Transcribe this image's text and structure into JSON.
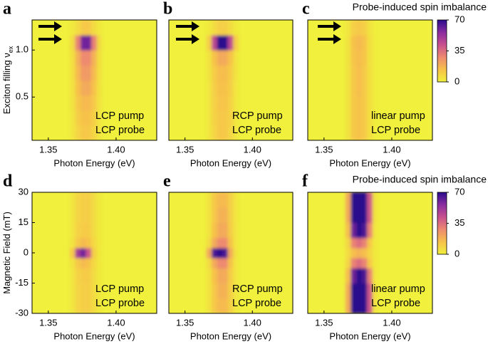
{
  "chart_data": [
    {
      "type": "heatmap",
      "panel": "a",
      "xlabel": "Photon Energy (eV)",
      "ylabel": "Exciton filling ν",
      "ylabel_sub": "ex",
      "annotation": [
        "LCP pump",
        "LCP probe"
      ],
      "xlim": [
        1.338,
        1.43
      ],
      "xticks": [
        {
          "value": 1.35,
          "label": "1.35"
        },
        {
          "value": 1.4,
          "label": "1.40"
        }
      ],
      "ylim": [
        0.04,
        1.32
      ],
      "yticks": [
        0.5,
        {
          "value": 1.0,
          "label": "1.0"
        }
      ],
      "colormap": [
        "#f0f03c",
        "#f7c24a",
        "#ee8a70",
        "#c8508e",
        "#8a2ca0",
        "#2a0c8c"
      ],
      "zlim": [
        0,
        70
      ],
      "x": [
        1.338,
        1.366,
        1.37,
        1.374,
        1.378,
        1.382,
        1.386,
        1.39,
        1.43
      ],
      "y": [
        0.04,
        0.2,
        0.36,
        0.52,
        0.68,
        0.84,
        1.0,
        1.16,
        1.32
      ],
      "z": [
        [
          0,
          3,
          8,
          12,
          12,
          8,
          3,
          0
        ],
        [
          0,
          3,
          10,
          14,
          14,
          10,
          3,
          0
        ],
        [
          0,
          4,
          12,
          16,
          16,
          12,
          4,
          0
        ],
        [
          0,
          4,
          14,
          20,
          20,
          14,
          4,
          0
        ],
        [
          0,
          5,
          16,
          24,
          24,
          16,
          5,
          0
        ],
        [
          0,
          5,
          18,
          28,
          28,
          18,
          5,
          0
        ],
        [
          0,
          6,
          30,
          60,
          60,
          30,
          6,
          0
        ],
        [
          0,
          2,
          6,
          12,
          12,
          6,
          2,
          0
        ]
      ]
    },
    {
      "type": "heatmap",
      "panel": "b",
      "xlabel": "Photon Energy (eV)",
      "annotation": [
        "RCP pump",
        "LCP probe"
      ],
      "xlim": [
        1.338,
        1.43
      ],
      "xticks": [
        {
          "value": 1.35,
          "label": "1.35"
        },
        {
          "value": 1.4,
          "label": "1.40"
        }
      ],
      "ylim": [
        0.04,
        1.32
      ],
      "colormap": [
        "#f0f03c",
        "#f7c24a",
        "#ee8a70",
        "#c8508e",
        "#8a2ca0",
        "#2a0c8c"
      ],
      "zlim": [
        0,
        70
      ],
      "x": [
        1.338,
        1.366,
        1.37,
        1.374,
        1.378,
        1.382,
        1.386,
        1.39,
        1.43
      ],
      "y": [
        0.04,
        0.2,
        0.36,
        0.52,
        0.68,
        0.84,
        1.0,
        1.16,
        1.32
      ],
      "z": [
        [
          0,
          3,
          8,
          12,
          12,
          8,
          3,
          0
        ],
        [
          0,
          3,
          9,
          12,
          12,
          9,
          3,
          0
        ],
        [
          0,
          3,
          9,
          13,
          13,
          9,
          3,
          0
        ],
        [
          0,
          3,
          10,
          14,
          14,
          10,
          3,
          0
        ],
        [
          0,
          4,
          11,
          15,
          15,
          11,
          4,
          0
        ],
        [
          0,
          4,
          14,
          20,
          20,
          14,
          4,
          0
        ],
        [
          0,
          10,
          45,
          70,
          70,
          45,
          10,
          0
        ],
        [
          0,
          2,
          6,
          10,
          10,
          6,
          2,
          0
        ]
      ]
    },
    {
      "type": "heatmap",
      "panel": "c",
      "xlabel": "Photon Energy (eV)",
      "annotation": [
        "linear pump",
        "LCP probe"
      ],
      "colorbar_title": "Probe-induced spin imbalance",
      "colorbar_ticks": [
        0,
        35,
        70
      ],
      "xlim": [
        1.338,
        1.43
      ],
      "xticks": [
        {
          "value": 1.35,
          "label": "1.35"
        },
        {
          "value": 1.4,
          "label": "1.40"
        }
      ],
      "ylim": [
        0.04,
        1.32
      ],
      "colormap": [
        "#f0f03c",
        "#f7c24a",
        "#ee8a70",
        "#c8508e",
        "#8a2ca0",
        "#2a0c8c"
      ],
      "zlim": [
        0,
        70
      ],
      "x": [
        1.338,
        1.366,
        1.37,
        1.374,
        1.378,
        1.382,
        1.386,
        1.39,
        1.43
      ],
      "y": [
        0.04,
        0.2,
        0.36,
        0.52,
        0.68,
        0.84,
        1.0,
        1.16,
        1.32
      ],
      "z": [
        [
          0,
          4,
          12,
          14,
          12,
          5,
          1,
          0
        ],
        [
          0,
          4,
          12,
          14,
          12,
          5,
          1,
          0
        ],
        [
          0,
          4,
          12,
          14,
          12,
          5,
          1,
          0
        ],
        [
          0,
          4,
          12,
          15,
          12,
          5,
          1,
          0
        ],
        [
          0,
          4,
          12,
          15,
          12,
          5,
          1,
          0
        ],
        [
          0,
          4,
          13,
          15,
          13,
          5,
          1,
          0
        ],
        [
          0,
          4,
          14,
          16,
          14,
          5,
          1,
          0
        ],
        [
          0,
          3,
          10,
          12,
          10,
          4,
          1,
          0
        ]
      ]
    },
    {
      "type": "heatmap",
      "panel": "d",
      "xlabel": "Photon Energy (eV)",
      "ylabel": "Magnetic Field (mT)",
      "annotation": [
        "LCP pump",
        "LCP probe"
      ],
      "xlim": [
        1.338,
        1.43
      ],
      "xticks": [
        {
          "value": 1.35,
          "label": "1.35"
        },
        {
          "value": 1.4,
          "label": "1.40"
        }
      ],
      "ylim": [
        -30,
        30
      ],
      "yticks": [
        -30,
        -15,
        0,
        15,
        30
      ],
      "colormap": [
        "#f0f03c",
        "#f7c24a",
        "#ee8a70",
        "#c8508e",
        "#8a2ca0",
        "#2a0c8c"
      ],
      "zlim": [
        0,
        70
      ],
      "x": [
        1.338,
        1.366,
        1.37,
        1.374,
        1.378,
        1.382,
        1.386,
        1.39,
        1.43
      ],
      "y": [
        -30,
        -22.5,
        -15,
        -7.5,
        -2.5,
        2.5,
        7.5,
        15,
        22.5,
        30
      ],
      "z": [
        [
          0,
          3,
          8,
          10,
          10,
          6,
          2,
          0
        ],
        [
          0,
          3,
          8,
          10,
          10,
          6,
          2,
          0
        ],
        [
          0,
          3,
          9,
          11,
          11,
          6,
          2,
          0
        ],
        [
          0,
          4,
          12,
          16,
          14,
          7,
          2,
          0
        ],
        [
          0,
          12,
          50,
          60,
          40,
          10,
          2,
          0
        ],
        [
          0,
          4,
          12,
          16,
          14,
          7,
          2,
          0
        ],
        [
          0,
          3,
          9,
          11,
          11,
          6,
          2,
          0
        ],
        [
          0,
          3,
          8,
          10,
          10,
          6,
          2,
          0
        ],
        [
          0,
          3,
          8,
          10,
          10,
          6,
          2,
          0
        ]
      ]
    },
    {
      "type": "heatmap",
      "panel": "e",
      "xlabel": "Photon Energy (eV)",
      "annotation": [
        "RCP pump",
        "LCP probe"
      ],
      "xlim": [
        1.338,
        1.43
      ],
      "xticks": [
        {
          "value": 1.35,
          "label": "1.35"
        },
        {
          "value": 1.4,
          "label": "1.40"
        }
      ],
      "ylim": [
        -30,
        30
      ],
      "colormap": [
        "#f0f03c",
        "#f7c24a",
        "#ee8a70",
        "#c8508e",
        "#8a2ca0",
        "#2a0c8c"
      ],
      "zlim": [
        0,
        70
      ],
      "x": [
        1.338,
        1.366,
        1.37,
        1.374,
        1.378,
        1.382,
        1.386,
        1.39,
        1.43
      ],
      "y": [
        -30,
        -22.5,
        -15,
        -7.5,
        -2.5,
        2.5,
        7.5,
        15,
        22.5,
        30
      ],
      "z": [
        [
          0,
          4,
          12,
          16,
          16,
          10,
          3,
          0
        ],
        [
          0,
          4,
          12,
          18,
          18,
          10,
          3,
          0
        ],
        [
          0,
          4,
          14,
          20,
          20,
          11,
          3,
          0
        ],
        [
          0,
          6,
          20,
          28,
          28,
          14,
          3,
          0
        ],
        [
          0,
          20,
          65,
          70,
          65,
          20,
          4,
          0
        ],
        [
          0,
          6,
          20,
          28,
          28,
          14,
          3,
          0
        ],
        [
          0,
          4,
          14,
          20,
          20,
          11,
          3,
          0
        ],
        [
          0,
          4,
          12,
          18,
          18,
          10,
          3,
          0
        ],
        [
          0,
          4,
          12,
          16,
          16,
          10,
          3,
          0
        ]
      ]
    },
    {
      "type": "heatmap",
      "panel": "f",
      "xlabel": "Photon Energy (eV)",
      "annotation": [
        "linear pump",
        "LCP probe"
      ],
      "colorbar_title": "Probe-induced spin imbalance",
      "colorbar_ticks": [
        0,
        35,
        70
      ],
      "xlim": [
        1.338,
        1.43
      ],
      "xticks": [
        {
          "value": 1.35,
          "label": "1.35"
        },
        {
          "value": 1.4,
          "label": "1.40"
        }
      ],
      "ylim": [
        -30,
        30
      ],
      "colormap": [
        "#f0f03c",
        "#f7c24a",
        "#ee8a70",
        "#c8508e",
        "#8a2ca0",
        "#2a0c8c"
      ],
      "zlim": [
        0,
        70
      ],
      "x": [
        1.338,
        1.366,
        1.37,
        1.374,
        1.378,
        1.382,
        1.386,
        1.39,
        1.43
      ],
      "y": [
        -30,
        -22.5,
        -15,
        -7.5,
        -2.5,
        2.5,
        7.5,
        15,
        22.5,
        30
      ],
      "z": [
        [
          0,
          20,
          70,
          70,
          70,
          40,
          4,
          0
        ],
        [
          0,
          20,
          70,
          70,
          70,
          40,
          4,
          0
        ],
        [
          0,
          15,
          60,
          70,
          65,
          30,
          3,
          0
        ],
        [
          0,
          8,
          30,
          35,
          30,
          12,
          2,
          0
        ],
        [
          0,
          6,
          15,
          18,
          15,
          8,
          2,
          0
        ],
        [
          0,
          8,
          30,
          35,
          30,
          12,
          2,
          0
        ],
        [
          0,
          15,
          60,
          70,
          65,
          30,
          3,
          0
        ],
        [
          0,
          20,
          70,
          70,
          70,
          40,
          4,
          0
        ],
        [
          0,
          20,
          70,
          70,
          70,
          40,
          4,
          0
        ]
      ]
    }
  ]
}
